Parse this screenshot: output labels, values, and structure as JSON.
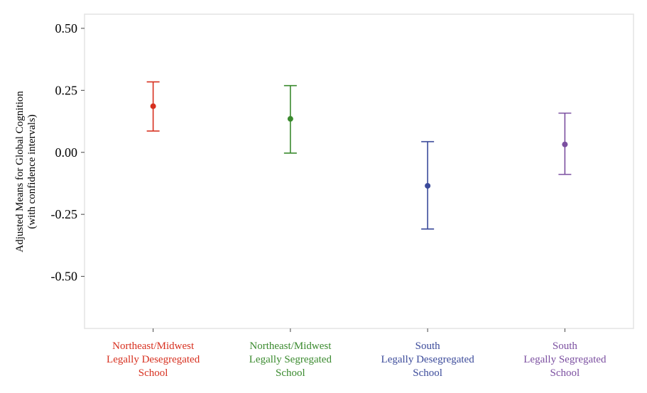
{
  "chart_data": {
    "type": "scatter",
    "title": "",
    "xlabel": "",
    "ylabel": "Adjusted Means for Global Cognition",
    "ylabel_sub": "(with confidence intervals)",
    "ylim": [
      -0.71,
      0.557
    ],
    "yticks": [
      0.5,
      0.25,
      0.0,
      -0.25,
      -0.5
    ],
    "ytick_labels": [
      "0.50",
      "0.25",
      "0.00",
      "-0.25",
      "-0.50"
    ],
    "grid": false,
    "categories": [
      {
        "lines": [
          "Northeast/Midwest",
          "Legally Desegregated",
          "School"
        ],
        "mean": 0.186,
        "lower": 0.086,
        "upper": 0.284,
        "color": "#d7301f"
      },
      {
        "lines": [
          "Northeast/Midwest",
          "Legally Segregated",
          "School"
        ],
        "mean": 0.135,
        "lower": -0.003,
        "upper": 0.269,
        "color": "#3a8a2e"
      },
      {
        "lines": [
          "South",
          "Legally Desegregated",
          "School"
        ],
        "mean": -0.135,
        "lower": -0.309,
        "upper": 0.043,
        "color": "#3b4a9a"
      },
      {
        "lines": [
          "South",
          "Legally Segregated",
          "School"
        ],
        "mean": 0.032,
        "lower": -0.089,
        "upper": 0.158,
        "color": "#7b4fa0"
      }
    ]
  }
}
